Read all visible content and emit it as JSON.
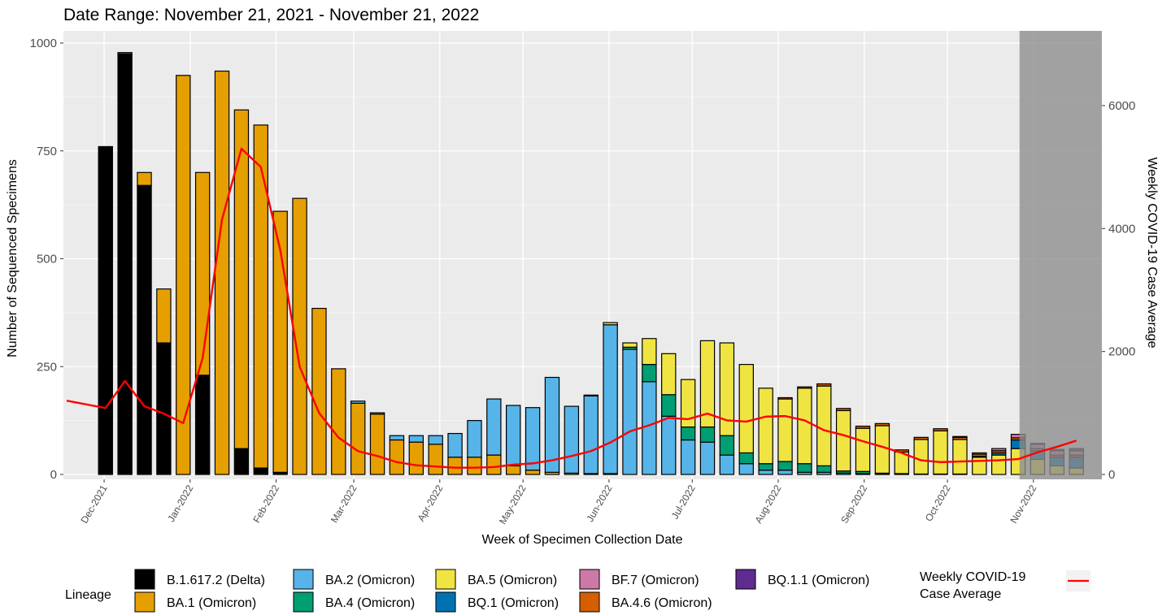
{
  "chart_data": {
    "type": "bar",
    "stacked": true,
    "title": "Date Range: November 21, 2021 - November 21, 2022",
    "xlabel": "Week of Specimen Collection Date",
    "ylabel": "Number of Sequenced Specimens",
    "ylabel_right": "Weekly COVID-19 Case Average",
    "ylim": [
      0,
      1000
    ],
    "ylim_right": [
      0,
      7000
    ],
    "yticks": [
      0,
      250,
      500,
      750,
      1000
    ],
    "yticks_right": [
      0,
      2000,
      4000,
      6000
    ],
    "month_ticks": [
      "Dec-2021",
      "Jan-2022",
      "Feb-2022",
      "Mar-2022",
      "Apr-2022",
      "May-2022",
      "Jun-2022",
      "Jul-2022",
      "Aug-2022",
      "Sep-2022",
      "Oct-2022",
      "Nov-2022"
    ],
    "month_tick_dates": [
      "2021-12-01",
      "2022-01-01",
      "2022-02-01",
      "2022-03-01",
      "2022-04-01",
      "2022-05-01",
      "2022-06-01",
      "2022-07-01",
      "2022-08-01",
      "2022-09-01",
      "2022-10-01",
      "2022-11-01"
    ],
    "weeks": [
      "2021-11-21",
      "2021-11-28",
      "2021-12-05",
      "2021-12-12",
      "2021-12-19",
      "2021-12-26",
      "2022-01-02",
      "2022-01-09",
      "2022-01-16",
      "2022-01-23",
      "2022-01-30",
      "2022-02-06",
      "2022-02-13",
      "2022-02-20",
      "2022-02-27",
      "2022-03-06",
      "2022-03-13",
      "2022-03-20",
      "2022-03-27",
      "2022-04-03",
      "2022-04-10",
      "2022-04-17",
      "2022-04-24",
      "2022-05-01",
      "2022-05-08",
      "2022-05-15",
      "2022-05-22",
      "2022-05-29",
      "2022-06-05",
      "2022-06-12",
      "2022-06-19",
      "2022-06-26",
      "2022-07-03",
      "2022-07-10",
      "2022-07-17",
      "2022-07-24",
      "2022-07-31",
      "2022-08-07",
      "2022-08-14",
      "2022-08-21",
      "2022-08-28",
      "2022-09-04",
      "2022-09-11",
      "2022-09-18",
      "2022-09-25",
      "2022-10-02",
      "2022-10-09",
      "2022-10-16",
      "2022-10-23",
      "2022-10-30",
      "2022-11-06",
      "2022-11-13"
    ],
    "shaded_region": {
      "start": "2022-10-30",
      "end": "2022-11-21"
    },
    "series": [
      {
        "name": "B.1.617.2 (Delta)",
        "color": "#000000",
        "values": [
          0,
          760,
          975,
          670,
          305,
          0,
          230,
          0,
          60,
          15,
          5,
          0,
          0,
          0,
          0,
          0,
          0,
          0,
          0,
          0,
          0,
          0,
          0,
          0,
          0,
          0,
          0,
          0,
          0,
          0,
          0,
          0,
          0,
          0,
          0,
          0,
          0,
          0,
          0,
          0,
          0,
          0,
          0,
          0,
          0,
          0,
          0,
          0,
          0,
          0,
          0,
          0
        ]
      },
      {
        "name": "BA.1 (Omicron)",
        "color": "#E69F00",
        "values": [
          0,
          0,
          3,
          30,
          125,
          925,
          470,
          935,
          785,
          795,
          605,
          640,
          385,
          245,
          165,
          140,
          80,
          75,
          70,
          40,
          40,
          45,
          20,
          10,
          5,
          3,
          2,
          2,
          0,
          0,
          0,
          0,
          0,
          0,
          0,
          0,
          0,
          0,
          0,
          0,
          0,
          0,
          0,
          0,
          0,
          0,
          0,
          0,
          0,
          0,
          0,
          0
        ]
      },
      {
        "name": "BA.2 (Omicron)",
        "color": "#56B4E9",
        "values": [
          0,
          0,
          0,
          0,
          0,
          0,
          0,
          0,
          0,
          0,
          0,
          0,
          0,
          0,
          5,
          3,
          10,
          15,
          20,
          55,
          85,
          130,
          140,
          145,
          220,
          155,
          180,
          345,
          290,
          215,
          135,
          80,
          75,
          45,
          25,
          10,
          10,
          5,
          5,
          3,
          2,
          1,
          1,
          0,
          0,
          0,
          0,
          0,
          0,
          0,
          0,
          0
        ]
      },
      {
        "name": "BA.4 (Omicron)",
        "color": "#009E73",
        "values": [
          0,
          0,
          0,
          0,
          0,
          0,
          0,
          0,
          0,
          0,
          0,
          0,
          0,
          0,
          0,
          0,
          0,
          0,
          0,
          0,
          0,
          0,
          0,
          0,
          0,
          0,
          0,
          0,
          5,
          40,
          50,
          30,
          35,
          45,
          25,
          15,
          20,
          20,
          15,
          5,
          5,
          2,
          1,
          1,
          1,
          1,
          0,
          0,
          0,
          0,
          0,
          0
        ]
      },
      {
        "name": "BA.5 (Omicron)",
        "color": "#F0E442",
        "values": [
          0,
          0,
          0,
          0,
          0,
          0,
          0,
          0,
          0,
          0,
          0,
          0,
          0,
          0,
          0,
          0,
          0,
          0,
          0,
          0,
          0,
          0,
          0,
          0,
          0,
          0,
          2,
          5,
          10,
          60,
          95,
          110,
          200,
          215,
          205,
          175,
          145,
          175,
          185,
          140,
          100,
          110,
          50,
          80,
          100,
          80,
          40,
          45,
          60,
          35,
          20,
          15
        ]
      },
      {
        "name": "BQ.1 (Omicron)",
        "color": "#0072B2",
        "values": [
          0,
          0,
          0,
          0,
          0,
          0,
          0,
          0,
          0,
          0,
          0,
          0,
          0,
          0,
          0,
          0,
          0,
          0,
          0,
          0,
          0,
          0,
          0,
          0,
          0,
          0,
          0,
          0,
          0,
          0,
          0,
          0,
          0,
          0,
          0,
          0,
          0,
          0,
          0,
          0,
          0,
          0,
          0,
          0,
          0,
          0,
          2,
          5,
          20,
          20,
          20,
          25
        ]
      },
      {
        "name": "BA.4.6 (Omicron)",
        "color": "#D55E00",
        "values": [
          0,
          0,
          0,
          0,
          0,
          0,
          0,
          0,
          0,
          0,
          0,
          0,
          0,
          0,
          0,
          0,
          0,
          0,
          0,
          0,
          0,
          0,
          0,
          0,
          0,
          0,
          0,
          0,
          0,
          0,
          0,
          0,
          0,
          0,
          0,
          0,
          3,
          3,
          5,
          5,
          5,
          5,
          5,
          5,
          5,
          5,
          5,
          5,
          5,
          5,
          5,
          5
        ]
      },
      {
        "name": "BF.7 (Omicron)",
        "color": "#CC79A7",
        "values": [
          0,
          0,
          0,
          0,
          0,
          0,
          0,
          0,
          0,
          0,
          0,
          0,
          0,
          0,
          0,
          0,
          0,
          0,
          0,
          0,
          0,
          0,
          0,
          0,
          0,
          0,
          0,
          0,
          0,
          0,
          0,
          0,
          0,
          0,
          0,
          0,
          0,
          0,
          0,
          0,
          0,
          0,
          0,
          0,
          0,
          2,
          3,
          5,
          8,
          10,
          10,
          10
        ]
      },
      {
        "name": "BQ.1.1 (Omicron)",
        "color": "#5E2C91",
        "values": [
          0,
          0,
          0,
          0,
          0,
          0,
          0,
          0,
          0,
          0,
          0,
          0,
          0,
          0,
          0,
          0,
          0,
          0,
          0,
          0,
          0,
          0,
          0,
          0,
          0,
          0,
          0,
          0,
          0,
          0,
          0,
          0,
          0,
          0,
          0,
          0,
          0,
          0,
          0,
          0,
          0,
          0,
          0,
          0,
          0,
          0,
          0,
          0,
          0,
          2,
          3,
          5
        ]
      }
    ],
    "line_series": {
      "name": "Weekly COVID-19 Case Average",
      "color": "#FF0000",
      "axis": "right",
      "values": [
        1200,
        1080,
        1520,
        1110,
        990,
        835,
        1890,
        4150,
        5300,
        5000,
        3650,
        1750,
        1000,
        600,
        380,
        300,
        200,
        150,
        130,
        110,
        110,
        120,
        160,
        180,
        230,
        300,
        380,
        520,
        700,
        800,
        920,
        900,
        990,
        880,
        860,
        940,
        950,
        880,
        720,
        640,
        540,
        450,
        350,
        230,
        200,
        210,
        220,
        230,
        250,
        360,
        450,
        550
      ]
    },
    "legend": {
      "placement": "bottom",
      "title": "Lineage",
      "line_title": "Weekly COVID-19\nCase Average"
    }
  }
}
